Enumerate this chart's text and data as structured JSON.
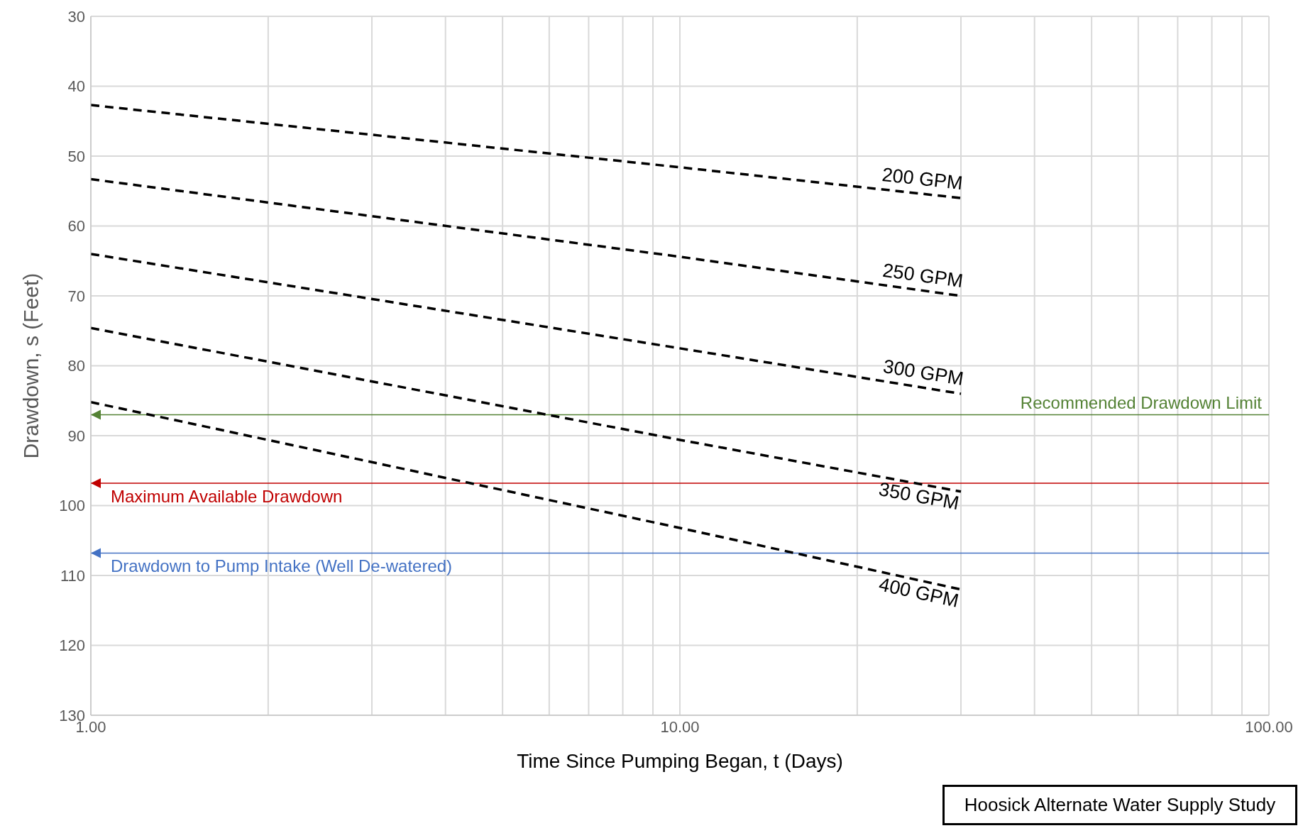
{
  "chart_data": {
    "type": "line",
    "xlabel": "Time Since Pumping Began, t (Days)",
    "ylabel": "Drawdown, s (Feet)",
    "log": "x",
    "xlim": [
      1,
      100
    ],
    "ylim": [
      130,
      30
    ],
    "xticks": [
      {
        "value": 1,
        "label": "1.00"
      },
      {
        "value": 2,
        "label": null
      },
      {
        "value": 3,
        "label": null
      },
      {
        "value": 4,
        "label": null
      },
      {
        "value": 5,
        "label": null
      },
      {
        "value": 6,
        "label": null
      },
      {
        "value": 7,
        "label": null
      },
      {
        "value": 8,
        "label": null
      },
      {
        "value": 9,
        "label": null
      },
      {
        "value": 10,
        "label": "10.00"
      },
      {
        "value": 20,
        "label": null
      },
      {
        "value": 30,
        "label": null
      },
      {
        "value": 40,
        "label": null
      },
      {
        "value": 50,
        "label": null
      },
      {
        "value": 60,
        "label": null
      },
      {
        "value": 70,
        "label": null
      },
      {
        "value": 80,
        "label": null
      },
      {
        "value": 90,
        "label": null
      },
      {
        "value": 100,
        "label": "100.00"
      }
    ],
    "yticks": [
      30,
      40,
      50,
      60,
      70,
      80,
      90,
      100,
      110,
      120,
      130
    ],
    "grid": true,
    "line_style": "dashed",
    "marker": "none",
    "legend": false,
    "series": [
      {
        "name": "200 GPM",
        "color": "#000000",
        "x": [
          1,
          10,
          30
        ],
        "values": [
          42.7,
          51.6,
          56.0
        ]
      },
      {
        "name": "250 GPM",
        "color": "#000000",
        "x": [
          1,
          10,
          30
        ],
        "values": [
          53.3,
          64.4,
          70.0
        ]
      },
      {
        "name": "300 GPM",
        "color": "#000000",
        "x": [
          1,
          10,
          30
        ],
        "values": [
          64.0,
          77.5,
          84.0
        ]
      },
      {
        "name": "350 GPM",
        "color": "#000000",
        "x": [
          1,
          10,
          30
        ],
        "values": [
          74.6,
          90.6,
          98.0
        ]
      },
      {
        "name": "400 GPM",
        "color": "#000000",
        "x": [
          1,
          10,
          30
        ],
        "values": [
          85.2,
          103.2,
          112.0
        ]
      }
    ],
    "ref_lines": [
      {
        "axis": "y",
        "value": 87,
        "label": "Recommended Drawdown Limit",
        "color": "#548235"
      },
      {
        "axis": "y",
        "value": 96.8,
        "label": "Maximum Available Drawdown",
        "color": "#c00000"
      },
      {
        "axis": "y",
        "value": 106.8,
        "label": "Drawdown to Pump Intake (Well De-watered)",
        "color": "#4472c4"
      }
    ],
    "annotations": [
      "Hoosick Alternate Water Supply Study"
    ]
  }
}
